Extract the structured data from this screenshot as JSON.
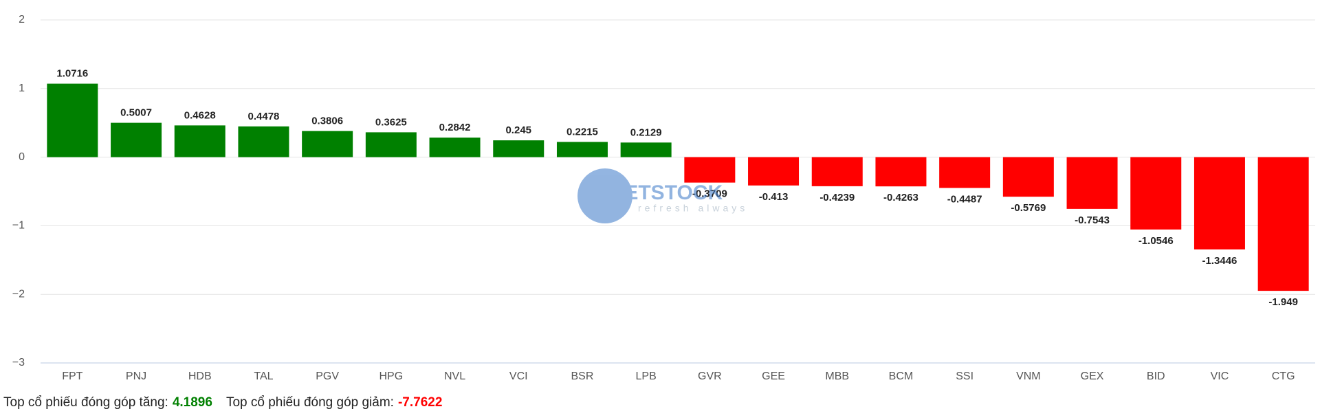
{
  "chart_data": {
    "type": "bar",
    "categories": [
      "FPT",
      "PNJ",
      "HDB",
      "TAL",
      "PGV",
      "HPG",
      "NVL",
      "VCI",
      "BSR",
      "LPB",
      "GVR",
      "GEE",
      "MBB",
      "BCM",
      "SSI",
      "VNM",
      "GEX",
      "BID",
      "VIC",
      "CTG"
    ],
    "values": [
      1.0716,
      0.5007,
      0.4628,
      0.4478,
      0.3806,
      0.3625,
      0.2842,
      0.245,
      0.2215,
      0.2129,
      -0.3709,
      -0.413,
      -0.4239,
      -0.4263,
      -0.4487,
      -0.5769,
      -0.7543,
      -1.0546,
      -1.3446,
      -1.949
    ],
    "positive_color": "#008000",
    "negative_color": "#ff0000",
    "ylim": [
      -3,
      2
    ],
    "yticks": [
      {
        "value": -3,
        "label": "−3"
      },
      {
        "value": -2,
        "label": "−2"
      },
      {
        "value": -1,
        "label": "−1"
      },
      0,
      1,
      2
    ],
    "grid": true
  },
  "watermark": {
    "title": "VIETSTOCK",
    "tagline": "refresh always"
  },
  "summary": {
    "up_label": "Top cổ phiếu đóng góp tăng:",
    "up_value": 4.1896,
    "down_label": "Top cổ phiếu đóng góp giảm:",
    "down_value": -7.7622
  }
}
